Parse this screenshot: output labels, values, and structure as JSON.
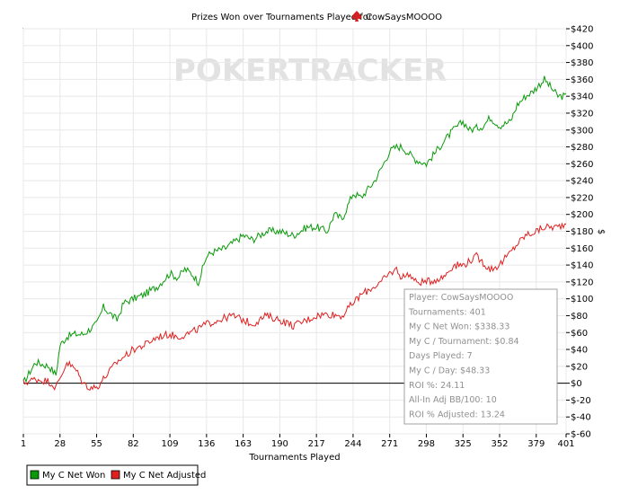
{
  "chart_data": {
    "type": "line",
    "title": "Prizes Won over Tournaments Played for",
    "player": "CowSaysMOOOO",
    "watermark": "POKERTRACKER",
    "xlabel": "Tournaments Played",
    "ylabel": "$",
    "xlim": [
      1,
      401
    ],
    "ylim": [
      -60,
      420
    ],
    "x_ticks": [
      1,
      28,
      55,
      82,
      109,
      136,
      163,
      190,
      217,
      244,
      271,
      298,
      325,
      352,
      379,
      401
    ],
    "y_ticks": [
      "$420",
      "$400",
      "$380",
      "$360",
      "$340",
      "$320",
      "$300",
      "$280",
      "$260",
      "$240",
      "$220",
      "$200",
      "$180",
      "$160",
      "$140",
      "$120",
      "$100",
      "$80",
      "$60",
      "$40",
      "$20",
      "$0",
      "$-20",
      "$-40",
      "$-60"
    ],
    "y_tick_values": [
      420,
      400,
      380,
      360,
      340,
      320,
      300,
      280,
      260,
      240,
      220,
      200,
      180,
      160,
      140,
      120,
      100,
      80,
      60,
      40,
      20,
      0,
      -20,
      -40,
      -60
    ],
    "legend_position": "bottom-left",
    "grid": true,
    "series": [
      {
        "name": "My C Net Won",
        "color": "#0a9a0a",
        "x": [
          1,
          10,
          20,
          25,
          28,
          33,
          38,
          45,
          55,
          60,
          70,
          75,
          82,
          90,
          100,
          109,
          115,
          120,
          125,
          130,
          136,
          140,
          150,
          163,
          170,
          180,
          190,
          200,
          210,
          217,
          225,
          230,
          236,
          244,
          250,
          260,
          265,
          271,
          276,
          280,
          290,
          298,
          303,
          310,
          318,
          325,
          330,
          340,
          345,
          352,
          360,
          365,
          371,
          376,
          379,
          385,
          390,
          395,
          401
        ],
        "y": [
          0,
          25,
          20,
          10,
          45,
          55,
          58,
          58,
          70,
          90,
          75,
          95,
          100,
          105,
          115,
          130,
          125,
          135,
          130,
          120,
          150,
          155,
          160,
          175,
          170,
          180,
          180,
          175,
          185,
          185,
          180,
          200,
          195,
          225,
          220,
          240,
          255,
          275,
          280,
          280,
          265,
          260,
          270,
          285,
          300,
          310,
          300,
          305,
          315,
          305,
          310,
          330,
          340,
          345,
          350,
          360,
          350,
          340,
          340
        ]
      },
      {
        "name": "My C Net Adjusted",
        "color": "#e02020",
        "x": [
          1,
          10,
          20,
          25,
          28,
          33,
          40,
          45,
          50,
          55,
          60,
          70,
          82,
          90,
          100,
          109,
          115,
          125,
          136,
          145,
          155,
          163,
          170,
          180,
          190,
          200,
          210,
          217,
          225,
          236,
          244,
          250,
          260,
          265,
          271,
          276,
          280,
          285,
          290,
          298,
          310,
          318,
          325,
          335,
          345,
          352,
          360,
          365,
          371,
          379,
          385,
          390,
          395,
          401
        ],
        "y": [
          0,
          5,
          2,
          -5,
          5,
          25,
          15,
          0,
          -5,
          -5,
          5,
          25,
          40,
          45,
          55,
          58,
          55,
          60,
          70,
          75,
          80,
          75,
          70,
          80,
          75,
          68,
          75,
          80,
          82,
          80,
          95,
          105,
          115,
          120,
          130,
          135,
          125,
          130,
          120,
          120,
          125,
          140,
          140,
          150,
          135,
          140,
          155,
          165,
          175,
          180,
          185,
          185,
          185,
          190
        ]
      }
    ]
  },
  "info_box": [
    "Player: CowSaysMOOOO",
    "Tournaments: 401",
    "My C Net Won: $338.33",
    "My C / Tournament: $0.84",
    "Days Played: 7",
    "My C / Day: $48.33",
    "ROI %: 24.11",
    "All-In Adj BB/100: 10",
    "ROI % Adjusted: 13.24"
  ],
  "legend": [
    {
      "label": "My C Net Won",
      "color": "#0a9a0a"
    },
    {
      "label": "My C Net Adjusted",
      "color": "#e02020"
    }
  ]
}
